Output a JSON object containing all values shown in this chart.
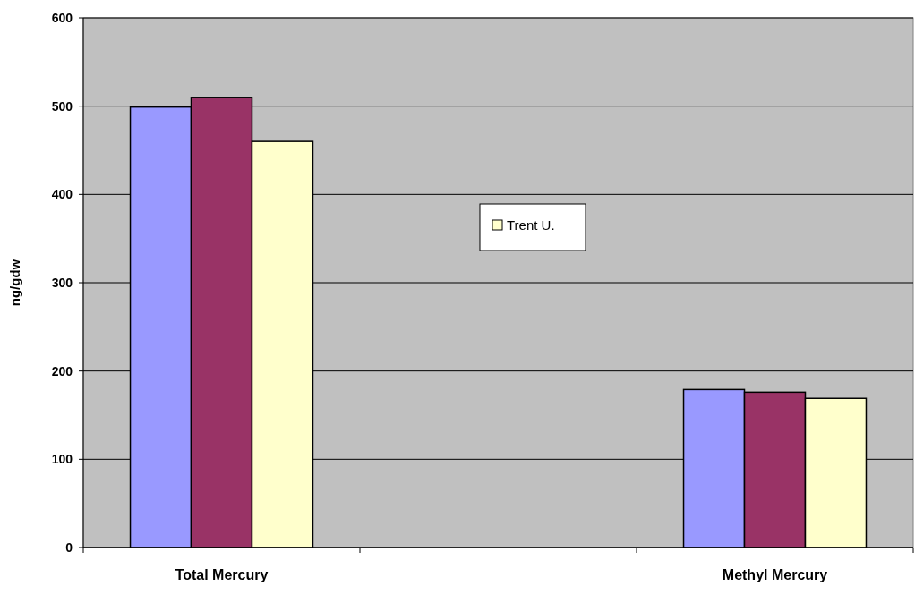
{
  "chart_data": {
    "type": "bar",
    "ylabel": "ng/gdw",
    "categories": [
      "Total Mercury",
      null,
      "Methyl Mercury"
    ],
    "series": [
      {
        "color": "#9999ff",
        "values": [
          499,
          null,
          179
        ]
      },
      {
        "color": "#993366",
        "values": [
          510,
          null,
          176
        ]
      },
      {
        "name": "Trent U.",
        "color": "#ffffcc",
        "values": [
          460,
          null,
          169
        ]
      }
    ],
    "ylim": [
      0,
      600
    ],
    "yticks": [
      0,
      100,
      200,
      300,
      400,
      500,
      600
    ],
    "grid": "y",
    "legend": "center"
  }
}
